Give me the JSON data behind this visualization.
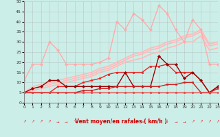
{
  "xlabel": "Vent moyen/en rafales ( km/h )",
  "xlim": [
    0,
    23
  ],
  "ylim": [
    0,
    50
  ],
  "xticks": [
    0,
    1,
    2,
    3,
    4,
    5,
    6,
    7,
    8,
    9,
    10,
    11,
    12,
    13,
    14,
    15,
    16,
    17,
    18,
    19,
    20,
    21,
    22,
    23
  ],
  "yticks": [
    0,
    5,
    10,
    15,
    20,
    25,
    30,
    35,
    40,
    45,
    50
  ],
  "background_color": "#cceee8",
  "grid_color": "#aaaaaa",
  "series": [
    {
      "x": [
        0,
        1,
        2,
        3,
        4,
        5,
        6,
        7,
        8,
        9,
        10,
        11,
        12,
        13,
        14,
        15,
        16,
        17,
        18,
        19,
        20,
        21,
        22,
        23
      ],
      "y": [
        5,
        8,
        9,
        10,
        11,
        12,
        13,
        14,
        15,
        17,
        18,
        20,
        22,
        24,
        25,
        27,
        28,
        30,
        31,
        33,
        34,
        36,
        29,
        30
      ],
      "color": "#ffbbbb",
      "linewidth": 1.3,
      "marker": null
    },
    {
      "x": [
        0,
        1,
        2,
        3,
        4,
        5,
        6,
        7,
        8,
        9,
        10,
        11,
        12,
        13,
        14,
        15,
        16,
        17,
        18,
        19,
        20,
        21,
        22,
        23
      ],
      "y": [
        5,
        7,
        8,
        9,
        10,
        11,
        12,
        13,
        14,
        16,
        17,
        19,
        21,
        23,
        24,
        26,
        27,
        29,
        30,
        32,
        33,
        35,
        28,
        29
      ],
      "color": "#ffbbbb",
      "linewidth": 1.3,
      "marker": null
    },
    {
      "x": [
        0,
        1,
        2,
        3,
        4,
        5,
        6,
        7,
        8,
        9,
        10,
        11,
        12,
        13,
        14,
        15,
        16,
        17,
        18,
        19,
        20,
        21,
        22,
        23
      ],
      "y": [
        5,
        6,
        7,
        8,
        9,
        10,
        11,
        12,
        13,
        15,
        16,
        18,
        20,
        21,
        22,
        24,
        25,
        27,
        28,
        30,
        30,
        33,
        26,
        27
      ],
      "color": "#ffbbbb",
      "linewidth": 1.3,
      "marker": null
    },
    {
      "x": [
        0,
        1,
        2,
        3,
        4,
        5,
        6,
        7,
        8,
        9,
        10,
        11,
        12,
        13,
        14,
        15,
        16,
        17,
        18,
        19,
        20,
        21,
        22,
        23
      ],
      "y": [
        11,
        19,
        19,
        30,
        26,
        19,
        19,
        19,
        19,
        20,
        22,
        40,
        36,
        44,
        41,
        36,
        48,
        44,
        36,
        30,
        41,
        36,
        19,
        19
      ],
      "color": "#ffaaaa",
      "linewidth": 1.0,
      "marker": "D",
      "markersize": 2.0
    },
    {
      "x": [
        0,
        1,
        2,
        3,
        4,
        5,
        6,
        7,
        8,
        9,
        10,
        11,
        12,
        13,
        14,
        15,
        16,
        17,
        18,
        19,
        20,
        21,
        22,
        23
      ],
      "y": [
        5,
        5,
        5,
        5,
        8,
        8,
        8,
        10,
        11,
        12,
        14,
        15,
        15,
        15,
        15,
        18,
        18,
        19,
        15,
        15,
        15,
        11,
        5,
        8
      ],
      "color": "#ee2222",
      "linewidth": 1.0,
      "marker": "s",
      "markersize": 2.0
    },
    {
      "x": [
        0,
        1,
        2,
        3,
        4,
        5,
        6,
        7,
        8,
        9,
        10,
        11,
        12,
        13,
        14,
        15,
        16,
        17,
        18,
        19,
        20,
        21,
        22,
        23
      ],
      "y": [
        5,
        7,
        8,
        11,
        11,
        8,
        8,
        8,
        8,
        8,
        8,
        8,
        15,
        8,
        8,
        8,
        23,
        19,
        19,
        12,
        15,
        11,
        5,
        8
      ],
      "color": "#990000",
      "linewidth": 1.0,
      "marker": "D",
      "markersize": 2.0
    },
    {
      "x": [
        0,
        1,
        2,
        3,
        4,
        5,
        6,
        7,
        8,
        9,
        10,
        11,
        12,
        13,
        14,
        15,
        16,
        17,
        18,
        19,
        20,
        21,
        22,
        23
      ],
      "y": [
        5,
        5,
        5,
        5,
        5,
        5,
        5,
        6,
        6,
        7,
        7,
        8,
        8,
        8,
        8,
        8,
        8,
        9,
        9,
        10,
        10,
        5,
        5,
        7
      ],
      "color": "#cc2222",
      "linewidth": 1.0,
      "marker": "s",
      "markersize": 2.0
    },
    {
      "x": [
        0,
        1,
        2,
        3,
        4,
        5,
        6,
        7,
        8,
        9,
        10,
        11,
        12,
        13,
        14,
        15,
        16,
        17,
        18,
        19,
        20,
        21,
        22,
        23
      ],
      "y": [
        5,
        5,
        5,
        5,
        5,
        5,
        5,
        5,
        5,
        5,
        5,
        5,
        5,
        5,
        5,
        5,
        5,
        5,
        5,
        5,
        5,
        5,
        5,
        5
      ],
      "color": "#ee4444",
      "linewidth": 1.0,
      "marker": "s",
      "markersize": 1.5
    }
  ],
  "arrow_chars": [
    "↗",
    "↗",
    "↗",
    "↗",
    "→",
    "→",
    "↘",
    "↘",
    "↘",
    "↘",
    "↘",
    "↘",
    "↘",
    "↘",
    "↘",
    "↘",
    "↘",
    "↓",
    "→",
    "→",
    "↗",
    "↗",
    "↗",
    "↗"
  ]
}
